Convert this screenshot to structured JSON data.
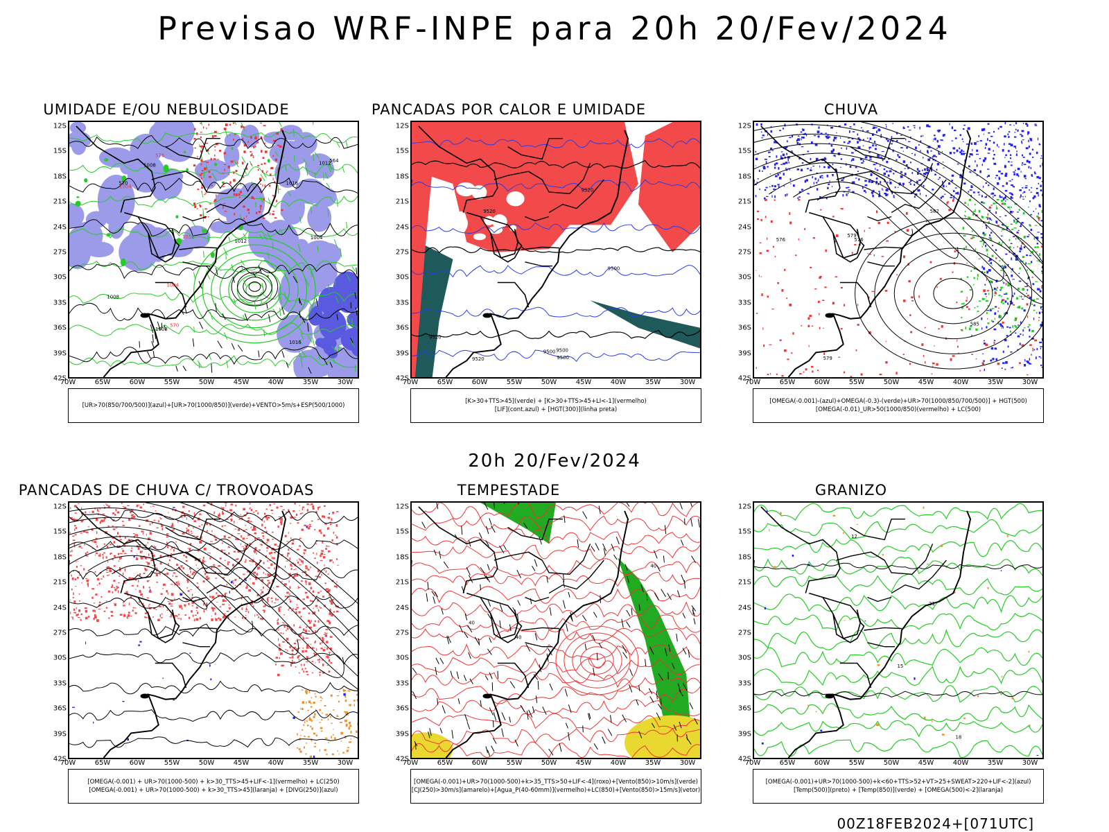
{
  "header": {
    "title": "Previsao WRF-INPE  para 20h 20/Fev/2024"
  },
  "subheader": {
    "title": "20h 20/Fev/2024"
  },
  "footer": {
    "text": "00Z18FEB2024+[071UTC]"
  },
  "lat_ticks": [
    "12S",
    "15S",
    "18S",
    "21S",
    "24S",
    "27S",
    "30S",
    "33S",
    "36S",
    "39S",
    "42S"
  ],
  "lon_ticks": [
    "70W",
    "65W",
    "60W",
    "55W",
    "50W",
    "45W",
    "40W",
    "35W",
    "30W"
  ],
  "panels": [
    {
      "title": "UMIDADE E/OU NEBULOSIDADE",
      "caption": [
        "[UR>70(850/700/500)](azul)+[UR>70(1000/850)](verde)+VENTO>5m/s+ESP(500/1000)"
      ],
      "contour_labels": [
        "1008",
        "1004",
        "1012",
        "1016",
        "1008",
        "1004",
        "1012",
        "1008",
        "1004",
        "1012",
        "1016",
        "576",
        "570",
        "564",
        "570"
      ],
      "colors": {
        "fill1": "#9b9bea",
        "fill2": "#5a5ae0",
        "line1": "#22cc22",
        "line2": "#ee3333"
      }
    },
    {
      "title": "PANCADAS POR CALOR E UMIDADE",
      "caption": [
        "[K>30+TTS>45](verde) + [K>30+TTS>45+LI<-1](vermelho)",
        "[LIF](cont.azul) + [HGT(300)](linha preta)"
      ],
      "contour_labels": [
        "9500",
        "9500",
        "9520",
        "9500",
        "9500",
        "9520",
        "9520",
        "9520"
      ],
      "colors": {
        "fill1": "#f24a4a",
        "fill2": "#1e5a5a",
        "line1": "#2a3ae8",
        "line2": "#000000"
      }
    },
    {
      "title": "CHUVA",
      "caption": [
        "[OMEGA(-0.001)-(azul)+OMEGA(-0.3)-(verde)+UR>70(1000/850/700/500)] + HGT(500)",
        "[OMEGA(-0.01)_UR>50(1000/850)(vermelho) + LC(500)"
      ],
      "contour_labels": [
        "585",
        "576",
        "582",
        "579",
        "576",
        "579"
      ],
      "colors": {
        "fill1": "#2222ee",
        "fill2": "#22cc22",
        "line1": "#ee3333",
        "line2": "#000000"
      }
    },
    {
      "title": "PANCADAS DE CHUVA C/ TROVOADAS",
      "caption": [
        "[OMEGA(-0.001) + UR>70(1000-500) + k>30_TTS>45+LIF<-1](vermelho) + LC(250)",
        "[OMEGA(-0.001) + UR>70(1000-500) + k>30_TTS>45](laranja) + [DIVG(250)](azul)"
      ],
      "contour_labels": [],
      "colors": {
        "fill1": "#f24a4a",
        "fill2": "#f0902a",
        "line1": "#2222ee",
        "line2": "#000000"
      }
    },
    {
      "title": "TEMPESTADE",
      "caption": [
        "[OMEGA(-0.001)+UR>70(1000-500)+k>35_TTS>50+LIF<-4](roxo)+[Vento(850)>10m/s](verde)",
        "[CJ(250)>30m/s](amarelo)+[Agua_P(40-60mm)](vermelho)+LC(850)+[Vento(850)>15m/s](vetor)"
      ],
      "contour_labels": [
        "40",
        "40",
        "40"
      ],
      "colors": {
        "fill1": "#22aa22",
        "fill2": "#e8d830",
        "line1": "#ee3333",
        "line2": "#000000"
      }
    },
    {
      "title": "GRANIZO",
      "caption": [
        "[OMEGA(-0.001)+UR>70(1000-500)+k<60+TTS>52+VT>25+SWEAT>220+LIF<-2](azul)",
        "[Temp(500)](preto) + [Temp(850)](verde) + [OMEGA(500)<-2](laranja)"
      ],
      "contour_labels": [
        "21",
        "18",
        "15",
        "12"
      ],
      "colors": {
        "fill1": "#f0902a",
        "fill2": "#2222ee",
        "line1": "#22cc22",
        "line2": "#000000"
      }
    }
  ]
}
